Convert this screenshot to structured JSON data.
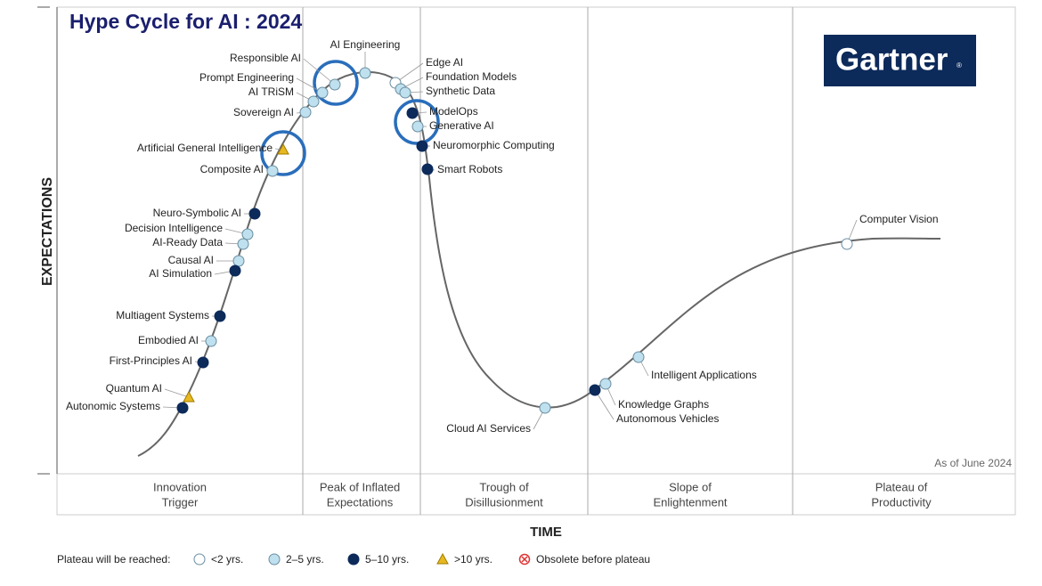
{
  "header": {
    "title": "Hype Cycle for AI : 2024",
    "logo": "Gartner",
    "logo_mark": "®"
  },
  "axes": {
    "y": "EXPECTATIONS",
    "x": "TIME"
  },
  "note": "As of June 2024",
  "phases": [
    [
      "Innovation",
      "Trigger"
    ],
    [
      "Peak of Inflated",
      "Expectations"
    ],
    [
      "Trough of",
      "Disillusionment"
    ],
    [
      "Slope of",
      "Enlightenment"
    ],
    [
      "Plateau of",
      "Productivity"
    ]
  ],
  "legend": {
    "title": "Plateau will be reached:",
    "items": [
      {
        "label": "<2 yrs.",
        "technologies": [
          "Edge AI",
          "Computer Vision"
        ]
      },
      {
        "label": "2–5 yrs.",
        "technologies": [
          "AI Engineering",
          "Responsible AI",
          "Prompt Engineering",
          "AI TRiSM",
          "Sovereign AI",
          "Foundation Models",
          "Synthetic Data",
          "Generative AI",
          "Composite AI",
          "Decision Intelligence",
          "AI-Ready Data",
          "Causal AI",
          "Embodied AI",
          "Cloud AI Services",
          "Knowledge Graphs",
          "Intelligent Applications"
        ]
      },
      {
        "label": "5–10 yrs.",
        "technologies": [
          "ModelOps",
          "Neuromorphic Computing",
          "Smart Robots",
          "Neuro-Symbolic AI",
          "AI Simulation",
          "Multiagent Systems",
          "First-Principles AI",
          "Autonomic Systems",
          "Autonomous Vehicles"
        ]
      },
      {
        "label": ">10 yrs.",
        "technologies": [
          "Artificial General Intelligence",
          "Quantum AI"
        ]
      },
      {
        "label": "Obsolete before plateau",
        "technologies": []
      }
    ]
  }
}
